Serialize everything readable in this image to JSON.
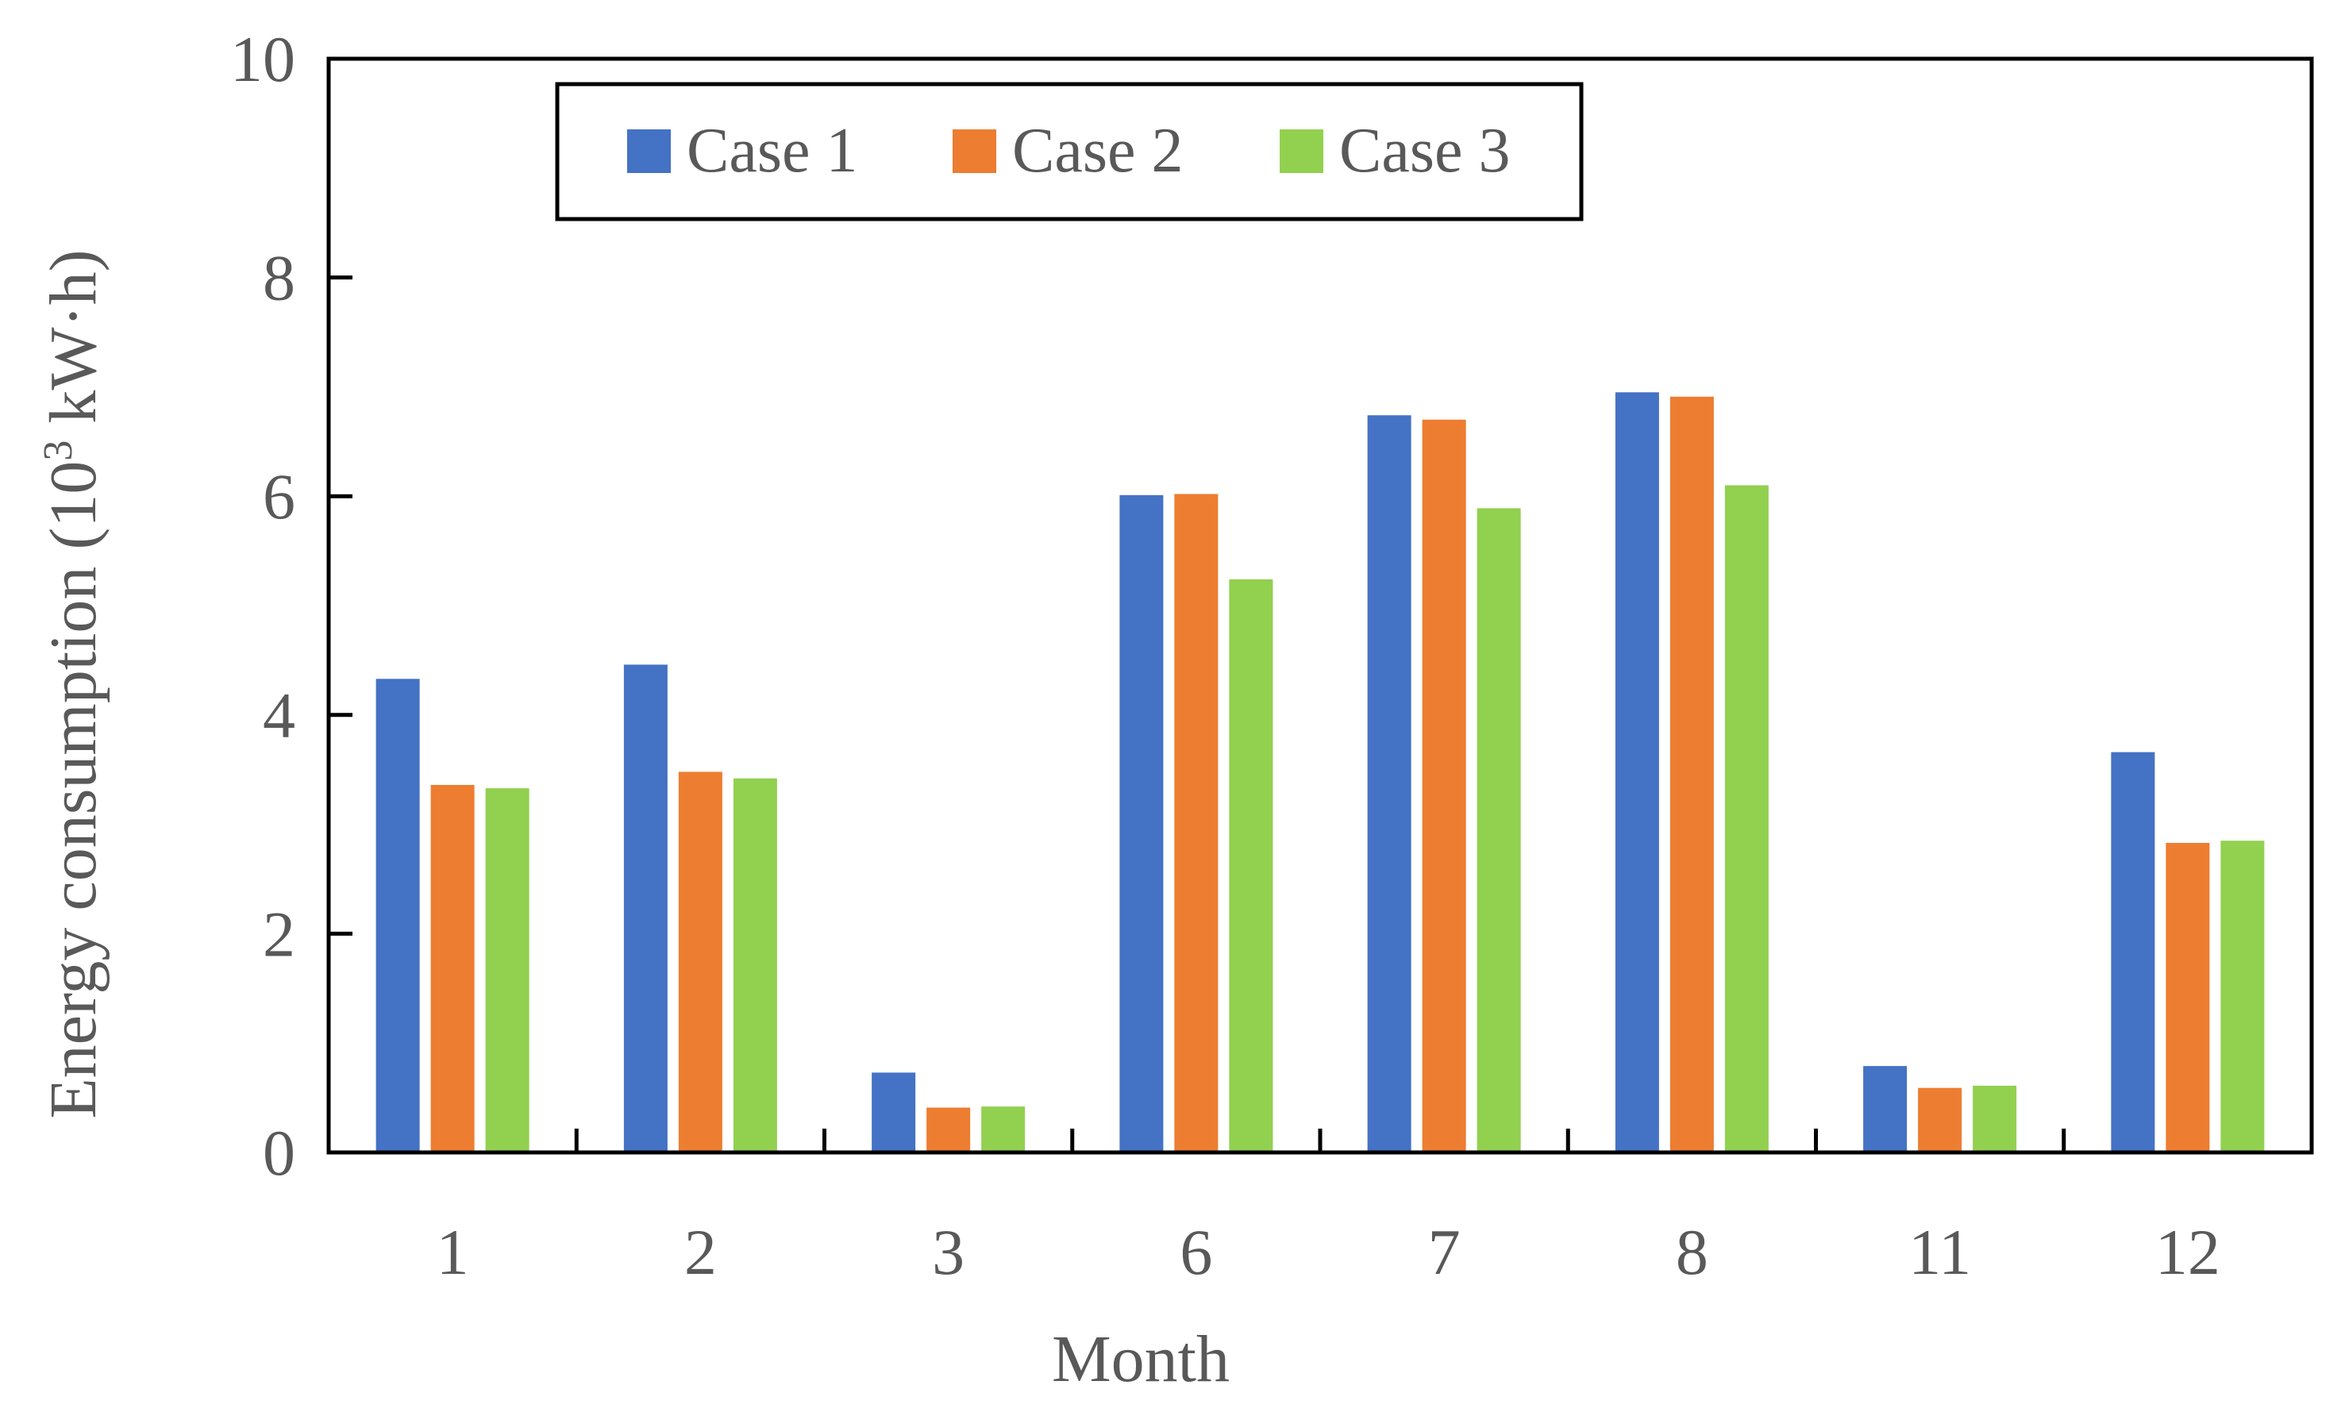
{
  "chart_data": {
    "type": "bar",
    "title": "",
    "xlabel": "Month",
    "ylabel": {
      "prefix": "Energy consumption (10",
      "superscript": "3",
      "suffix": " kW·h)"
    },
    "categories": [
      "1",
      "2",
      "3",
      "6",
      "7",
      "8",
      "11",
      "12"
    ],
    "ylim": [
      0,
      10
    ],
    "yticks": [
      "0",
      "2",
      "4",
      "6",
      "8",
      "10"
    ],
    "grid": false,
    "legend_position": "top-left",
    "series": [
      {
        "name": "Case 1",
        "color": "#4472C4",
        "values": [
          4.33,
          4.46,
          0.73,
          6.01,
          6.74,
          6.95,
          0.79,
          3.66
        ]
      },
      {
        "name": "Case 2",
        "color": "#ED7D31",
        "values": [
          3.36,
          3.48,
          0.41,
          6.02,
          6.7,
          6.91,
          0.59,
          2.83
        ]
      },
      {
        "name": "Case 3",
        "color": "#92D050",
        "values": [
          3.33,
          3.42,
          0.42,
          5.24,
          5.89,
          6.1,
          0.61,
          2.85
        ]
      }
    ]
  }
}
